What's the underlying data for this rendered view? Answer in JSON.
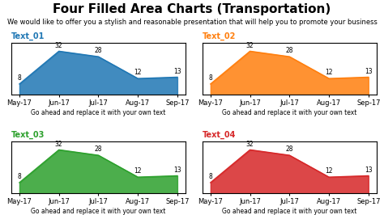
{
  "title": "Four Filled Area Charts (Transportation)",
  "subtitle": "We would like to offer you a stylish and reasonable presentation that will help you to promote your business",
  "chart_data": [
    {
      "type": "area",
      "title": "Text_01",
      "subtitle": "Go ahead and replace it with your own text",
      "categories": [
        "May-17",
        "Jun-17",
        "Jul-17",
        "Aug-17",
        "Sep-17"
      ],
      "values": [
        8,
        32,
        28,
        12,
        13
      ],
      "ylim": [
        0,
        38
      ],
      "tick_labels": "x",
      "data_labels": true
    },
    {
      "type": "area",
      "title": "Text_02",
      "subtitle": "Go ahead and replace it with your own text",
      "categories": [
        "May-17",
        "Jun-17",
        "Jul-17",
        "Aug-17",
        "Sep-17"
      ],
      "values": [
        8,
        32,
        28,
        12,
        13
      ],
      "ylim": [
        0,
        38
      ],
      "tick_labels": "x",
      "data_labels": true
    },
    {
      "type": "area",
      "title": "Text_03",
      "subtitle": "Go ahead and replace it with your own text",
      "categories": [
        "May-17",
        "Jun-17",
        "Jul-17",
        "Aug-17",
        "Sep-17"
      ],
      "values": [
        8,
        32,
        28,
        12,
        13
      ],
      "ylim": [
        0,
        38
      ],
      "tick_labels": "x",
      "data_labels": true
    },
    {
      "type": "area",
      "title": "Text_04",
      "subtitle": "Go ahead and replace it with your own text",
      "categories": [
        "May-17",
        "Jun-17",
        "Jul-17",
        "Aug-17",
        "Sep-17"
      ],
      "values": [
        8,
        32,
        28,
        12,
        13
      ],
      "ylim": [
        0,
        38
      ],
      "tick_labels": "x",
      "data_labels": true
    }
  ]
}
